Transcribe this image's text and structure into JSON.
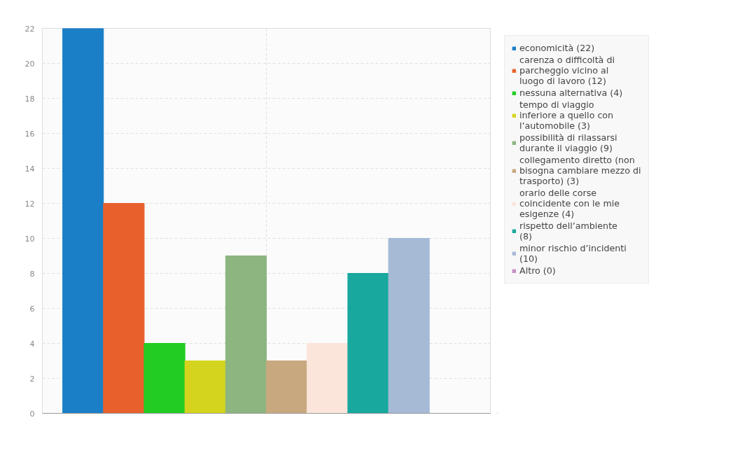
{
  "chart_data": {
    "type": "bar",
    "categories": [
      null
    ],
    "series": [
      {
        "name": "economicità (22)",
        "color": "#1a7fc7",
        "values": [
          22
        ]
      },
      {
        "name": "carenza o difficoltà di parcheggio vicino al luogo di lavoro (12)",
        "color": "#e8612c",
        "values": [
          12
        ]
      },
      {
        "name": "nessuna alternativa (4)",
        "color": "#22cc22",
        "values": [
          4
        ]
      },
      {
        "name": "tempo di viaggio inferiore a quello con l’automobile (3)",
        "color": "#d4d41f",
        "values": [
          3
        ]
      },
      {
        "name": "possibilità di rilassarsi durante il viaggio (9)",
        "color": "#8cb57f",
        "values": [
          9
        ]
      },
      {
        "name": "collegamento diretto (non bisogna cambiare mezzo di trasporto) (3)",
        "color": "#c8a97f",
        "values": [
          3
        ]
      },
      {
        "name": "orario delle corse coincidente con le mie esigenze (4)",
        "color": "#fbe5db",
        "values": [
          4
        ]
      },
      {
        "name": "rispetto dell’ambiente (8)",
        "color": "#18a89e",
        "values": [
          8
        ]
      },
      {
        "name": "minor rischio d’incidenti (10)",
        "color": "#a6bad6",
        "values": [
          10
        ]
      },
      {
        "name": "Altro (0)",
        "color": "#c58ec8",
        "values": [
          0
        ]
      }
    ],
    "ylim": [
      0,
      22
    ],
    "yticks": [
      0,
      2,
      4,
      6,
      8,
      10,
      12,
      14,
      16,
      18,
      20,
      22
    ],
    "grid": true,
    "legend": "right"
  }
}
